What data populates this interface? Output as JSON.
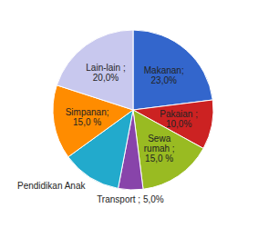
{
  "chart_data": {
    "type": "pie",
    "values": [
      23.0,
      10.0,
      15.0,
      5.0,
      12.0,
      15.0,
      20.0
    ],
    "colors": [
      "#3366CC",
      "#CC2222",
      "#99BB22",
      "#8844AA",
      "#22AACC",
      "#FF8C00",
      "#C8C8EE"
    ],
    "value_labels": [
      "Makanan;\n23,0%",
      "Pakaian ;\n10,0%",
      "Sewa\nrumah ;\n15,0 %",
      "Transport ; 5,0%",
      "Pendidikan Anak",
      "Simpanan;\n15,0 %",
      "Lain-lain ;\n20,0%"
    ],
    "data_labels": true
  }
}
